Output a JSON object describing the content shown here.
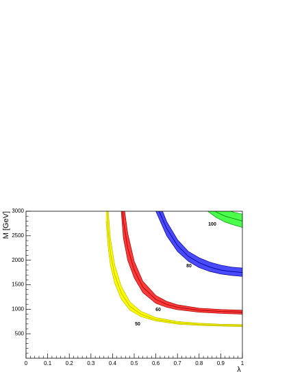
{
  "chart_data": {
    "type": "band",
    "x_label": "λ",
    "y_label": "M [GeV]",
    "xlim": [
      0,
      1
    ],
    "xticks": [
      0,
      0.1,
      0.2,
      0.3,
      0.4,
      0.5,
      0.6,
      0.7,
      0.8,
      0.9,
      1
    ],
    "ylim": [
      0,
      3000
    ],
    "yticks": [
      500,
      1000,
      1500,
      2000,
      2500,
      3000
    ],
    "series": [
      {
        "name": "50",
        "color": "#ffff00",
        "edge_color": "#b8b800",
        "x": [
          0.37,
          0.38,
          0.39,
          0.41,
          0.44,
          0.48,
          0.53,
          0.6,
          0.7,
          0.8,
          0.9,
          1.0
        ],
        "values": [
          3300,
          2600,
          2150,
          1700,
          1330,
          1060,
          900,
          790,
          720,
          690,
          675,
          665
        ],
        "lower": [
          2800,
          2250,
          1900,
          1530,
          1210,
          980,
          850,
          760,
          695,
          670,
          655,
          645
        ],
        "upper": [
          3900,
          3000,
          2450,
          1900,
          1470,
          1150,
          960,
          830,
          750,
          715,
          695,
          685
        ]
      },
      {
        "name": "60",
        "color": "#ff3b3b",
        "edge_color": "#a00000",
        "x": [
          0.44,
          0.45,
          0.47,
          0.5,
          0.54,
          0.6,
          0.65,
          0.7,
          0.8,
          0.9,
          1.0
        ],
        "values": [
          3500,
          2800,
          2250,
          1800,
          1450,
          1200,
          1100,
          1040,
          980,
          955,
          940
        ],
        "lower": [
          3000,
          2450,
          2000,
          1640,
          1340,
          1120,
          1040,
          990,
          940,
          915,
          900
        ],
        "upper": [
          4100,
          3200,
          2550,
          1980,
          1570,
          1280,
          1160,
          1090,
          1020,
          995,
          980
        ]
      },
      {
        "name": "80",
        "color": "#4a4aff",
        "edge_color": "#000090",
        "x": [
          0.6,
          0.62,
          0.65,
          0.7,
          0.75,
          0.8,
          0.85,
          0.9,
          0.95,
          1.0
        ],
        "values": [
          3200,
          2950,
          2650,
          2300,
          2080,
          1950,
          1860,
          1800,
          1770,
          1750
        ],
        "lower": [
          3000,
          2800,
          2500,
          2180,
          1980,
          1850,
          1770,
          1720,
          1690,
          1670
        ],
        "upper": [
          3450,
          3120,
          2790,
          2420,
          2180,
          2050,
          1960,
          1900,
          1860,
          1840
        ]
      },
      {
        "name": "100",
        "color": "#4cff4c",
        "edge_color": "#008a00",
        "x": [
          0.84,
          0.88,
          0.92,
          0.96,
          1.0
        ],
        "values": [
          3150,
          2980,
          2900,
          2850,
          2800
        ],
        "lower": [
          3000,
          2870,
          2780,
          2720,
          2670
        ],
        "upper": [
          3400,
          3150,
          3050,
          2980,
          2940
        ]
      }
    ]
  }
}
